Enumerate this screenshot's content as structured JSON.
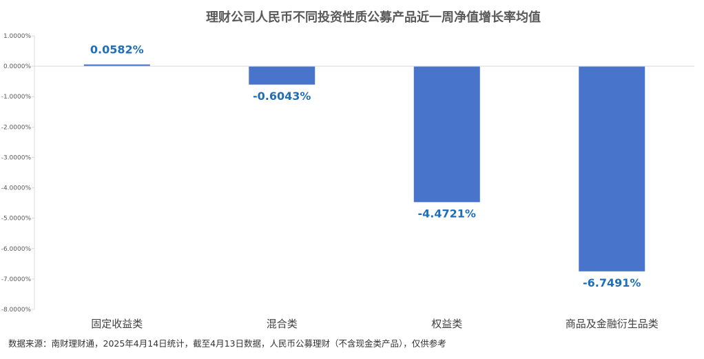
{
  "chart_data": {
    "type": "bar",
    "title": "理财公司人民币不同投资性质公募产品近一周净值增长率均值",
    "categories": [
      "固定收益类",
      "混合类",
      "权益类",
      "商品及金融衍生品类"
    ],
    "values": [
      0.0582,
      -0.6043,
      -4.4721,
      -6.7491
    ],
    "data_labels": [
      "0.0582%",
      "-0.6043%",
      "-4.4721%",
      "-6.7491%"
    ],
    "ylim": [
      -8,
      1
    ],
    "yticks": [
      1,
      0,
      -1,
      -2,
      -3,
      -4,
      -5,
      -6,
      -7,
      -8
    ],
    "ytick_labels": [
      "1.0000%",
      "0.0000%",
      "-1.0000%",
      "-2.0000%",
      "-3.0000%",
      "-4.0000%",
      "-5.0000%",
      "-6.0000%",
      "-7.0000%",
      "-8.0000%"
    ],
    "xlabel": "",
    "ylabel": "",
    "grid": false,
    "legend": "none",
    "bar_color": "#4874CB",
    "label_color": "#1F6FB8",
    "axis_color": "#D9D9D9"
  },
  "source_note": "数据来源：南财理财通，2025年4月14日统计，截至4月13日数据，人民币公募理财（不含现金类产品），仅供参考"
}
